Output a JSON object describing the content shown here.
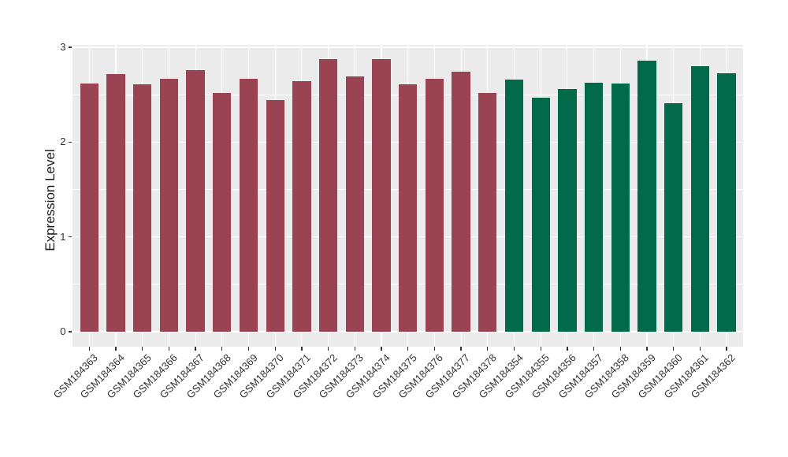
{
  "chart_data": {
    "type": "bar",
    "title": "",
    "xlabel": "",
    "ylabel": "Expression Level",
    "ylim": [
      0,
      3
    ],
    "yticks": [
      0,
      1,
      2,
      3
    ],
    "yticks_minor": [
      0.5,
      1.5,
      2.5
    ],
    "grid": true,
    "legend": false,
    "panel_background": "#EBEBEB",
    "gridline_color": "#FFFFFF",
    "categories": [
      "GSM184363",
      "GSM184364",
      "GSM184365",
      "GSM184366",
      "GSM184367",
      "GSM184368",
      "GSM184369",
      "GSM184370",
      "GSM184371",
      "GSM184372",
      "GSM184373",
      "GSM184374",
      "GSM184375",
      "GSM184376",
      "GSM184377",
      "GSM184378",
      "GSM184354",
      "GSM184355",
      "GSM184356",
      "GSM184357",
      "GSM184358",
      "GSM184359",
      "GSM184360",
      "GSM184361",
      "GSM184362"
    ],
    "values": [
      2.62,
      2.72,
      2.61,
      2.67,
      2.76,
      2.52,
      2.67,
      2.44,
      2.64,
      2.88,
      2.69,
      2.88,
      2.61,
      2.67,
      2.74,
      2.52,
      2.66,
      2.47,
      2.56,
      2.63,
      2.62,
      2.86,
      2.41,
      2.8,
      2.73
    ],
    "bar_groups": [
      {
        "color": "#9A4352",
        "count": 16
      },
      {
        "color": "#006A4A",
        "count": 9
      }
    ]
  }
}
